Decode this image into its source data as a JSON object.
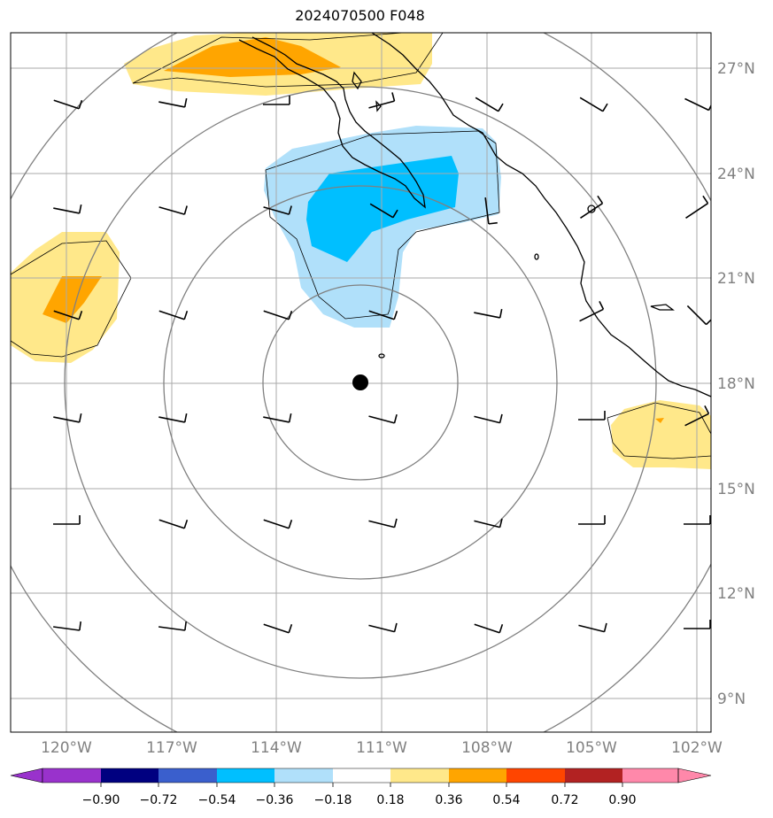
{
  "title": "2024070500 F048",
  "map": {
    "lat_labels": [
      "27°N",
      "24°N",
      "21°N",
      "18°N",
      "15°N",
      "12°N",
      "9°N"
    ],
    "lon_labels": [
      "120°W",
      "117°W",
      "114°W",
      "111°W",
      "108°W",
      "105°W",
      "102°W"
    ],
    "storm_center": {
      "lat": 18.0,
      "lon": -111.8
    },
    "grid_color": "#aaaaaa",
    "range_ring_color": "#808080"
  },
  "colorbar": {
    "ticks": [
      "−0.90",
      "−0.72",
      "−0.54",
      "−0.36",
      "−0.18",
      "0.18",
      "0.36",
      "0.54",
      "0.72",
      "0.90"
    ],
    "colors": [
      "#9932cc",
      "#000080",
      "#3a5fcd",
      "#00bfff",
      "#b0e0fa",
      "#ffffff",
      "#ffe88a",
      "#ffa500",
      "#ff4500",
      "#b22222",
      "#ff88aa"
    ]
  }
}
